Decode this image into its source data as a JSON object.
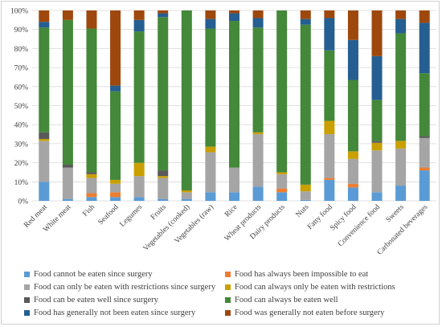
{
  "chart_data": {
    "type": "bar",
    "stacked": true,
    "title": "",
    "xlabel": "",
    "ylabel": "",
    "ylim": [
      0,
      100
    ],
    "yticks": [
      "0%",
      "10%",
      "20%",
      "30%",
      "40%",
      "50%",
      "60%",
      "70%",
      "80%",
      "90%",
      "100%"
    ],
    "grid": true,
    "legend_position": "bottom",
    "categories": [
      "Red meat",
      "White meat",
      "Fish",
      "Seafood",
      "Legumes",
      "Fruits",
      "Vegetables (cooked)",
      "Vegetables (raw)",
      "Rice",
      "Wheat products",
      "Dairy products",
      "Nuts",
      "Fatty food",
      "Spicy food",
      "Convenience food",
      "Sweets",
      "Carbonated beverages"
    ],
    "series": [
      {
        "name": "Food cannot be eaten since surgery",
        "color": "#5b9bd5",
        "values": [
          10,
          1,
          2,
          2,
          2,
          1,
          1,
          4.5,
          4.5,
          7.5,
          4.5,
          0.5,
          11,
          7,
          4.5,
          8,
          16
        ]
      },
      {
        "name": "Food has always been impossible to eat",
        "color": "#ed7d31",
        "values": [
          0,
          0,
          2,
          2.5,
          0,
          0,
          0,
          0,
          0,
          0,
          2,
          0,
          1,
          2,
          0,
          0,
          1.5
        ]
      },
      {
        "name": "Food can only be eaten with restrictions since surgery",
        "color": "#a5a5a5",
        "values": [
          21.5,
          16.5,
          8,
          4.5,
          11,
          11,
          3.5,
          21,
          13,
          27.5,
          7.5,
          4.5,
          23,
          13,
          22,
          19.5,
          15.5
        ]
      },
      {
        "name": "Food can always only be eaten with restrictions",
        "color": "#c9a000",
        "values": [
          1,
          0,
          2,
          2,
          7,
          1,
          1,
          3,
          0,
          1,
          1,
          3.5,
          7,
          4,
          4,
          4,
          0
        ]
      },
      {
        "name": "Food can be eaten well since surgery",
        "color": "#595959",
        "values": [
          3.5,
          1.5,
          1,
          0,
          0,
          3,
          0,
          0,
          0,
          0,
          0,
          0,
          0,
          0,
          1,
          0,
          1
        ]
      },
      {
        "name": "Food can always be eaten well",
        "color": "#44883a",
        "values": [
          55,
          76,
          75.5,
          46.5,
          69,
          80.5,
          94.5,
          62,
          77,
          55,
          85,
          84,
          37,
          37.5,
          21.5,
          56.5,
          33
        ]
      },
      {
        "name": "Food has generally not been eaten since surgery",
        "color": "#255e91",
        "values": [
          3,
          0,
          0,
          3,
          6,
          2,
          0,
          5,
          4,
          5,
          0,
          3,
          17,
          21,
          23,
          7.5,
          26.5
        ]
      },
      {
        "name": "Food was generally not eaten before surgery",
        "color": "#9e480e",
        "values": [
          6,
          5,
          9.5,
          39.5,
          5,
          1.5,
          0,
          4.5,
          1.5,
          4,
          0,
          4.5,
          4,
          15.5,
          24,
          4.5,
          6.5
        ]
      }
    ]
  }
}
